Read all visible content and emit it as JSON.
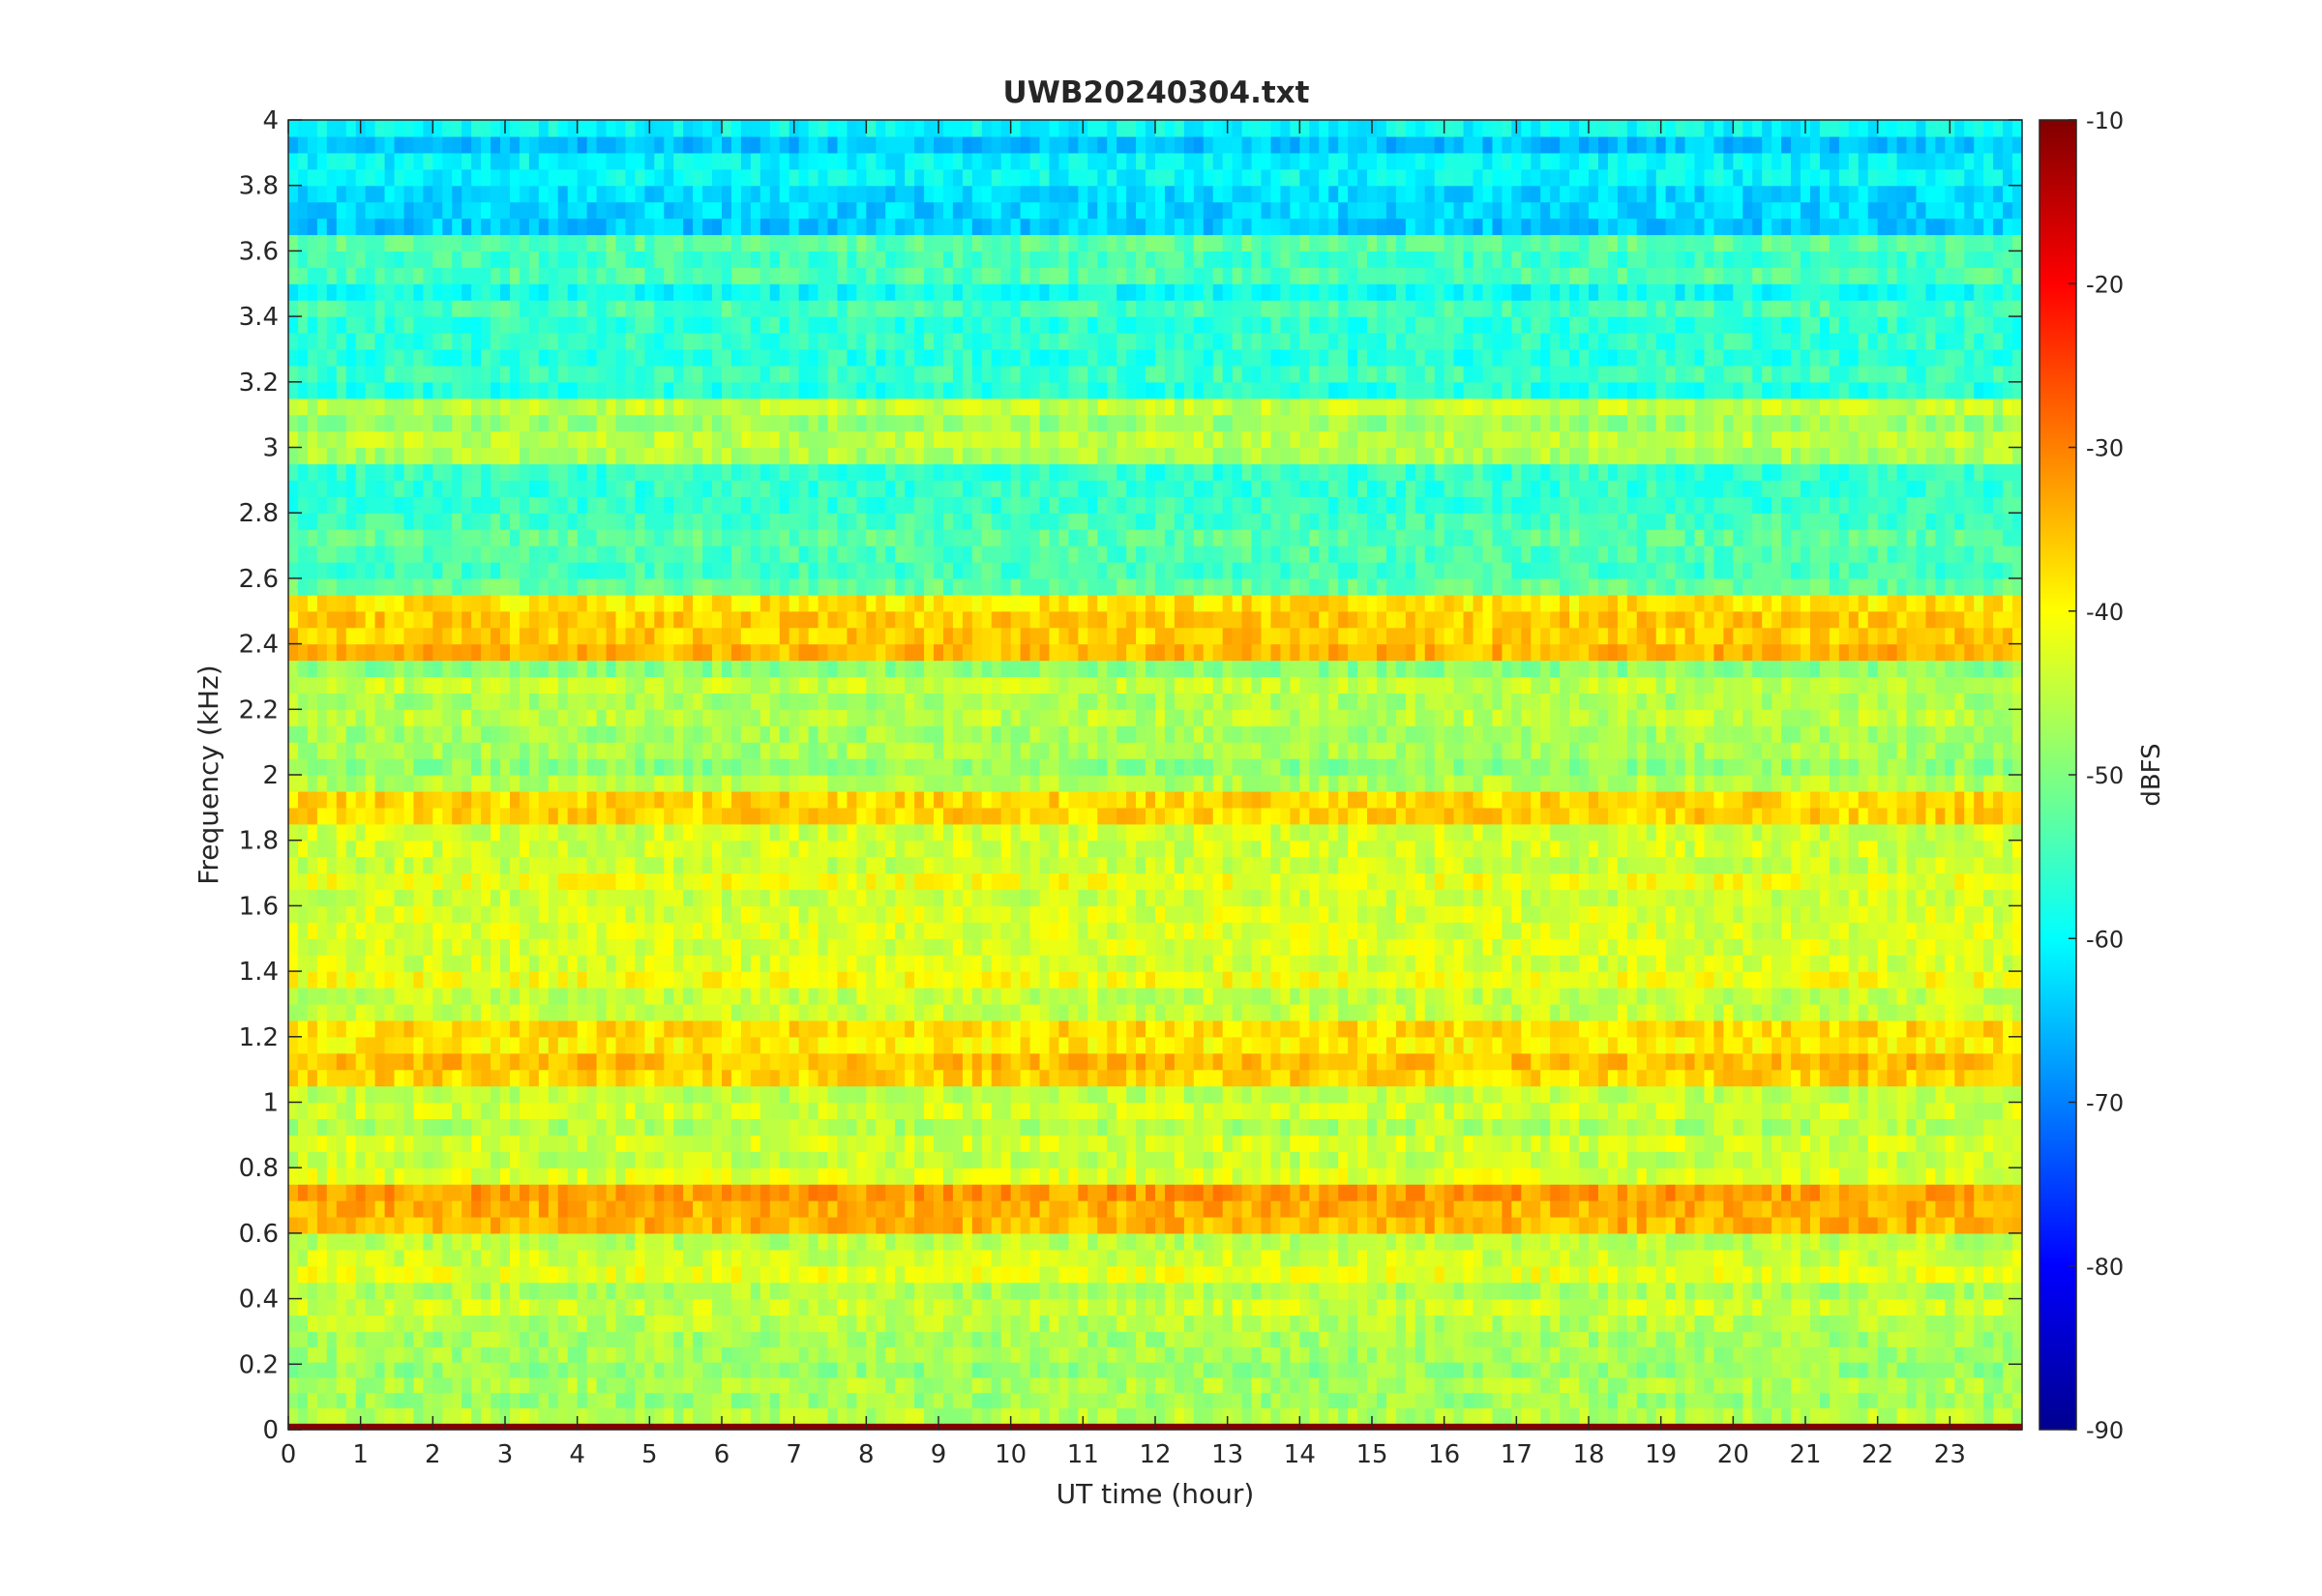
{
  "chart_data": {
    "type": "heatmap",
    "title": "UWB20240304.txt",
    "xlabel": "UT time (hour)",
    "ylabel": "Frequency (kHz)",
    "xlim": [
      0,
      24
    ],
    "ylim": [
      0,
      4
    ],
    "x_ticks": [
      0,
      1,
      2,
      3,
      4,
      5,
      6,
      7,
      8,
      9,
      10,
      11,
      12,
      13,
      14,
      15,
      16,
      17,
      18,
      19,
      20,
      21,
      22,
      23
    ],
    "y_ticks": [
      0,
      0.2,
      0.4,
      0.6,
      0.8,
      1,
      1.2,
      1.4,
      1.6,
      1.8,
      2,
      2.2,
      2.4,
      2.6,
      2.8,
      3,
      3.2,
      3.4,
      3.6,
      3.8,
      4
    ],
    "colorbar": {
      "label": "dBFS",
      "range": [
        -90,
        -10
      ],
      "ticks": [
        -10,
        -20,
        -30,
        -40,
        -50,
        -60,
        -70,
        -80,
        -90
      ],
      "colormap": "jet"
    },
    "grid": false,
    "frequency_band_levels_dbfs": [
      {
        "f_khz": [
          0.0,
          0.02
        ],
        "level": -10
      },
      {
        "f_khz": [
          0.02,
          0.3
        ],
        "level": -48
      },
      {
        "f_khz": [
          0.3,
          0.6
        ],
        "level": -44
      },
      {
        "f_khz": [
          0.6,
          0.75
        ],
        "level": -35
      },
      {
        "f_khz": [
          0.75,
          1.05
        ],
        "level": -44
      },
      {
        "f_khz": [
          1.05,
          1.25
        ],
        "level": -36
      },
      {
        "f_khz": [
          1.25,
          1.85
        ],
        "level": -42
      },
      {
        "f_khz": [
          1.85,
          1.95
        ],
        "level": -34
      },
      {
        "f_khz": [
          1.95,
          2.35
        ],
        "level": -46
      },
      {
        "f_khz": [
          2.35,
          2.55
        ],
        "level": -37
      },
      {
        "f_khz": [
          2.55,
          2.95
        ],
        "level": -53
      },
      {
        "f_khz": [
          2.95,
          3.15
        ],
        "level": -47
      },
      {
        "f_khz": [
          3.15,
          3.5
        ],
        "level": -57
      },
      {
        "f_khz": [
          3.5,
          3.65
        ],
        "level": -52
      },
      {
        "f_khz": [
          3.65,
          4.0
        ],
        "level": -62
      }
    ]
  }
}
